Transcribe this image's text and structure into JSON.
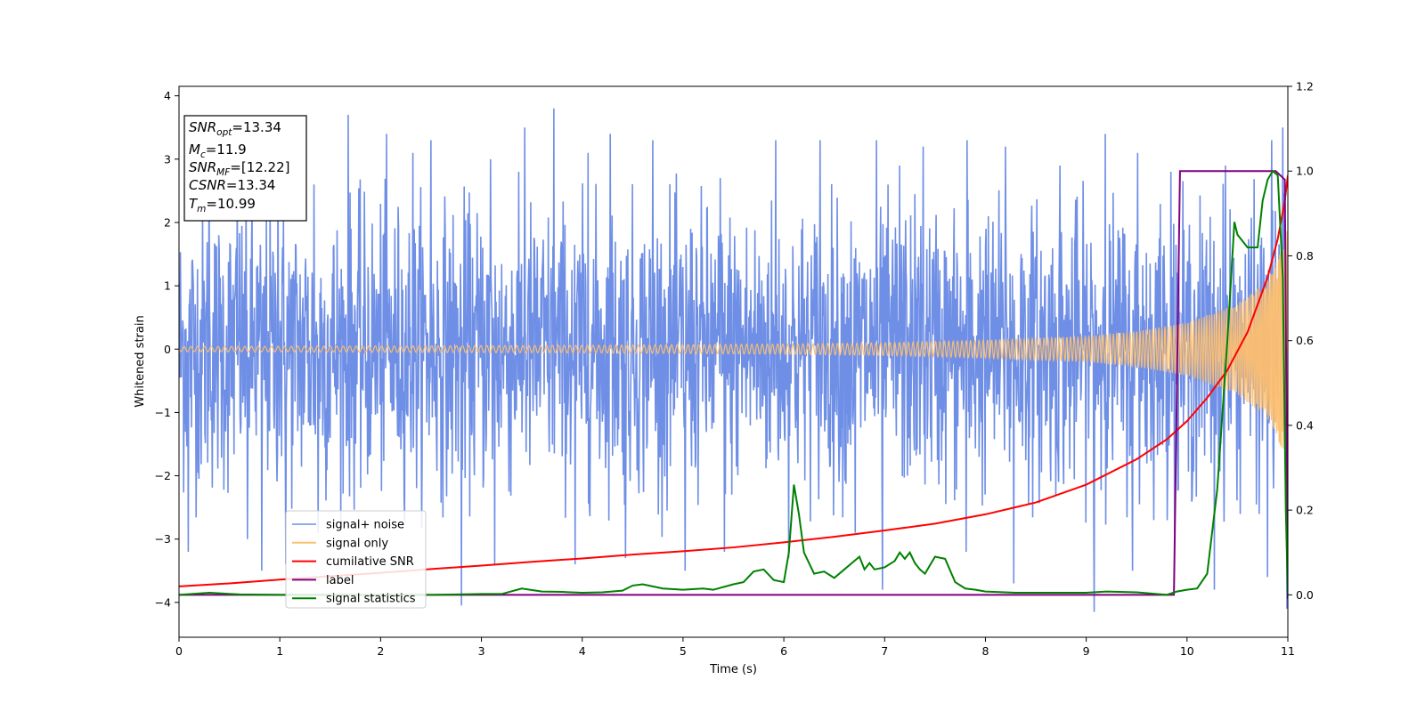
{
  "chart_data": {
    "type": "line",
    "xlabel": "Time (s)",
    "ylabel": "Whitened strain",
    "xlim": [
      0,
      11
    ],
    "ylim_left": [
      -4.55,
      4.15
    ],
    "ylim_right": [
      -0.1,
      1.2
    ],
    "x_ticks": [
      0,
      1,
      2,
      3,
      4,
      5,
      6,
      7,
      8,
      9,
      10,
      11
    ],
    "x_tick_labels": [
      "0",
      "1",
      "2",
      "3",
      "4",
      "5",
      "6",
      "7",
      "8",
      "9",
      "10",
      "11"
    ],
    "y_left_ticks": [
      -4,
      -3,
      -2,
      -1,
      0,
      1,
      2,
      3,
      4
    ],
    "y_left_tick_labels": [
      "−4",
      "−3",
      "−2",
      "−1",
      "0",
      "1",
      "2",
      "3",
      "4"
    ],
    "y_right_ticks": [
      0.0,
      0.2,
      0.4,
      0.6,
      0.8,
      1.0,
      1.2
    ],
    "y_right_tick_labels": [
      "0.0",
      "0.2",
      "0.4",
      "0.6",
      "0.8",
      "1.0",
      "1.2"
    ],
    "grid": false,
    "legend_placement": "lower-left",
    "annotation_box": {
      "lines": [
        {
          "base": "SNR",
          "sub": "opt",
          "rest": "=13.34"
        },
        {
          "base": "M",
          "sub": "c",
          "rest": "=11.9"
        },
        {
          "base": "SNR",
          "sub": "MF",
          "rest": "=[12.22]"
        },
        {
          "base": "CSNR",
          "sub": "",
          "rest": "=13.34"
        },
        {
          "base": "T",
          "sub": "m",
          "rest": "=10.99"
        }
      ]
    },
    "series": [
      {
        "name": "signal+ noise",
        "axis": "left",
        "color": "#6f8fe6",
        "kind": "noise",
        "typical_std": 1.1,
        "peaks": [
          [
            0.09,
            2.7
          ],
          [
            0.3,
            3.2
          ],
          [
            0.58,
            2.9
          ],
          [
            0.98,
            3.0
          ],
          [
            1.34,
            2.6
          ],
          [
            1.68,
            3.7
          ],
          [
            2.06,
            3.4
          ],
          [
            2.32,
            3.1
          ],
          [
            2.5,
            3.3
          ],
          [
            3.09,
            3.0
          ],
          [
            3.43,
            3.5
          ],
          [
            3.72,
            3.8
          ],
          [
            4.06,
            3.1
          ],
          [
            4.28,
            3.4
          ],
          [
            4.7,
            3.3
          ],
          [
            5.02,
            3.1
          ],
          [
            5.37,
            2.7
          ],
          [
            5.92,
            3.3
          ],
          [
            6.36,
            3.3
          ],
          [
            6.92,
            3.3
          ],
          [
            7.15,
            2.9
          ],
          [
            7.38,
            3.2
          ],
          [
            7.82,
            3.3
          ],
          [
            8.2,
            3.2
          ],
          [
            8.74,
            2.9
          ],
          [
            9.19,
            3.4
          ],
          [
            9.51,
            3.1
          ],
          [
            9.84,
            2.8
          ],
          [
            10.38,
            2.9
          ],
          [
            10.84,
            3.3
          ],
          [
            10.95,
            3.5
          ]
        ],
        "troughs": [
          [
            0.09,
            -3.2
          ],
          [
            0.68,
            -3.0
          ],
          [
            0.82,
            -3.5
          ],
          [
            1.06,
            -3.4
          ],
          [
            1.38,
            -2.9
          ],
          [
            2.8,
            -4.05
          ],
          [
            3.13,
            -3.4
          ],
          [
            3.93,
            -3.4
          ],
          [
            4.43,
            -3.3
          ],
          [
            5.02,
            -3.5
          ],
          [
            5.41,
            -3.2
          ],
          [
            6.05,
            -3.3
          ],
          [
            6.71,
            -2.9
          ],
          [
            6.98,
            -3.8
          ],
          [
            7.81,
            -3.2
          ],
          [
            8.28,
            -3.7
          ],
          [
            9.08,
            -4.15
          ],
          [
            9.46,
            -3.5
          ],
          [
            10.27,
            -3.8
          ],
          [
            10.8,
            -3.6
          ],
          [
            10.99,
            -4.1
          ]
        ]
      },
      {
        "name": "signal only",
        "axis": "left",
        "color": "#fdbf6f",
        "kind": "chirp",
        "amplitude_envelope": [
          [
            0,
            0.04
          ],
          [
            1,
            0.045
          ],
          [
            2,
            0.05
          ],
          [
            3,
            0.055
          ],
          [
            4,
            0.06
          ],
          [
            5,
            0.07
          ],
          [
            6,
            0.08
          ],
          [
            7,
            0.1
          ],
          [
            8,
            0.14
          ],
          [
            9,
            0.2
          ],
          [
            9.5,
            0.28
          ],
          [
            10,
            0.42
          ],
          [
            10.5,
            0.72
          ],
          [
            10.8,
            1.1
          ],
          [
            10.95,
            1.6
          ],
          [
            10.99,
            1.9
          ]
        ],
        "peak_shown_at_x": 10.99
      },
      {
        "name": "cumilative SNR",
        "axis": "right",
        "color": "#ff0000",
        "x": [
          0,
          0.5,
          1,
          1.5,
          2,
          2.5,
          3,
          3.5,
          4,
          4.5,
          5,
          5.5,
          6,
          6.5,
          7,
          7.5,
          8,
          8.5,
          9,
          9.5,
          9.8,
          10,
          10.2,
          10.4,
          10.6,
          10.8,
          10.9,
          10.97,
          11
        ],
        "y": [
          0.02,
          0.027,
          0.036,
          0.044,
          0.052,
          0.061,
          0.069,
          0.078,
          0.086,
          0.095,
          0.103,
          0.112,
          0.124,
          0.137,
          0.152,
          0.168,
          0.19,
          0.218,
          0.26,
          0.32,
          0.367,
          0.41,
          0.465,
          0.53,
          0.62,
          0.75,
          0.84,
          0.93,
          0.99
        ]
      },
      {
        "name": "label",
        "axis": "right",
        "color": "#800080",
        "x": [
          0,
          9.87,
          9.93,
          10.88,
          10.97,
          11
        ],
        "y": [
          0.0,
          0.0,
          1.0,
          1.0,
          0.98,
          -0.01
        ]
      },
      {
        "name": "signal statistics",
        "axis": "right",
        "color": "#008000",
        "x": [
          0,
          0.3,
          0.6,
          1,
          1.5,
          2,
          2.5,
          3,
          3.2,
          3.4,
          3.6,
          3.8,
          4,
          4.2,
          4.4,
          4.5,
          4.6,
          4.8,
          5,
          5.2,
          5.3,
          5.5,
          5.6,
          5.7,
          5.8,
          5.9,
          6,
          6.05,
          6.1,
          6.15,
          6.2,
          6.3,
          6.4,
          6.5,
          6.6,
          6.7,
          6.75,
          6.8,
          6.85,
          6.9,
          7,
          7.1,
          7.15,
          7.2,
          7.25,
          7.3,
          7.35,
          7.4,
          7.5,
          7.6,
          7.7,
          7.8,
          7.9,
          8,
          8.3,
          8.6,
          9,
          9.2,
          9.5,
          9.8,
          9.9,
          10,
          10.1,
          10.2,
          10.3,
          10.4,
          10.47,
          10.5,
          10.6,
          10.7,
          10.75,
          10.8,
          10.85,
          10.9,
          10.95,
          10.98,
          11
        ],
        "y": [
          0.0,
          0.005,
          0.001,
          0.0,
          0.0,
          0.0,
          0.0,
          0.002,
          0.002,
          0.015,
          0.008,
          0.007,
          0.005,
          0.006,
          0.01,
          0.022,
          0.025,
          0.015,
          0.012,
          0.015,
          0.012,
          0.025,
          0.03,
          0.055,
          0.06,
          0.035,
          0.03,
          0.1,
          0.26,
          0.19,
          0.1,
          0.05,
          0.055,
          0.04,
          0.06,
          0.08,
          0.09,
          0.06,
          0.075,
          0.06,
          0.065,
          0.08,
          0.1,
          0.085,
          0.1,
          0.075,
          0.06,
          0.05,
          0.09,
          0.085,
          0.03,
          0.015,
          0.012,
          0.008,
          0.005,
          0.005,
          0.005,
          0.008,
          0.006,
          0.0,
          0.008,
          0.012,
          0.015,
          0.05,
          0.25,
          0.6,
          0.88,
          0.85,
          0.82,
          0.82,
          0.93,
          0.98,
          1.0,
          0.99,
          0.75,
          0.2,
          0.0
        ]
      }
    ]
  }
}
